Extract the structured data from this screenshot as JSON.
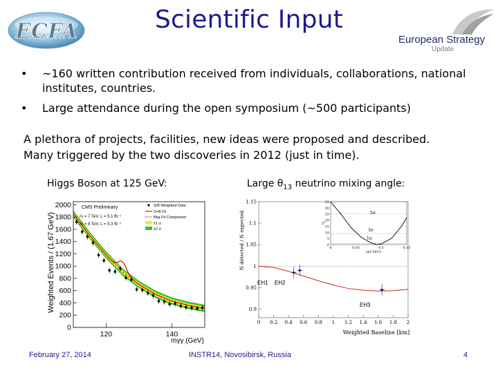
{
  "header": {
    "title": "Scientific Input",
    "logo_left_text": "ECFA",
    "logo_right_line1": "European Strategy",
    "logo_right_line2": "Update"
  },
  "bullets": [
    "~160 written contribution received  from individuals, collaborations, national institutes, countries.",
    "Large attendance during the open symposium (~500 participants)"
  ],
  "paragraph": {
    "line1": "A plethora of projects, facilities, new ideas were proposed and described.",
    "line2": "Many triggered by the two discoveries in 2012 (just in time)."
  },
  "captions": {
    "left": "Higgs Boson at 125 GeV:",
    "right_prefix": "Large θ",
    "right_sub": "13",
    "right_suffix": " neutrino mixing angle:"
  },
  "footer": {
    "date": "February 27, 2014",
    "event": "INSTR14, Novosibirsk, Russia",
    "page": "4"
  },
  "chart_data": [
    {
      "type": "scatter",
      "ylabel": "Weighted Events / (1.67 GeV)",
      "xlabel": "mγγ (GeV)",
      "x_ticks": [
        "120",
        "140"
      ],
      "y_ticks": [
        "0",
        "200",
        "400",
        "600",
        "800",
        "1000",
        "1200",
        "1400",
        "1600",
        "1800",
        "2000"
      ],
      "xlim": [
        110,
        150
      ],
      "ylim": [
        0,
        2050
      ],
      "annotations": [
        "CMS Preliminary",
        "√s = 7 TeV, L = 5.1 fb⁻¹",
        "√s = 8 TeV, L = 5.3 fb⁻¹"
      ],
      "legend": [
        "S/B Weighted Data",
        "S+B Fit",
        "Bkg Fit Component",
        "±1 σ",
        "±2 σ"
      ],
      "legend_position": "top-right",
      "colors": {
        "data": "#000000",
        "fit": "#d01010",
        "bkg": "#d01010",
        "band1": "#f2ee2a",
        "band2": "#35c235"
      },
      "x": [
        111,
        112.7,
        114.3,
        116,
        117.7,
        119.3,
        121,
        122.7,
        124.3,
        126,
        127.7,
        129.3,
        131,
        132.7,
        134.3,
        136,
        137.7,
        139.3,
        141,
        142.7,
        144.3,
        146,
        147.7,
        149.3
      ],
      "y": [
        1720,
        1560,
        1480,
        1380,
        1180,
        1090,
        930,
        910,
        960,
        810,
        780,
        620,
        610,
        560,
        520,
        430,
        420,
        380,
        390,
        350,
        330,
        320,
        310,
        320
      ],
      "bkg_fit": {
        "x": [
          110,
          115,
          120,
          125,
          130,
          135,
          140,
          145,
          150
        ],
        "y": [
          1850,
          1500,
          1180,
          900,
          700,
          540,
          430,
          360,
          310
        ]
      },
      "signal_peak": {
        "x": 125,
        "height": 170
      }
    },
    {
      "type": "line",
      "ylabel": "N detected / N expected",
      "xlabel": "Weighted Baseline [km]",
      "x_ticks": [
        "0",
        "0.2",
        "0.4",
        "0.6",
        "0.8",
        "1",
        "1.2",
        "1.4",
        "1.6",
        "1.8",
        "2"
      ],
      "y_ticks": [
        "0.9",
        "0.95",
        "1",
        "1.05",
        "1.1",
        "1.15"
      ],
      "xlim": [
        0,
        2
      ],
      "ylim": [
        0.88,
        1.15
      ],
      "labels": [
        "EH1",
        "EH2",
        "EH3"
      ],
      "points": [
        {
          "name": "EH1",
          "x": 0.47,
          "y": 0.985
        },
        {
          "name": "EH2",
          "x": 0.55,
          "y": 0.99
        },
        {
          "name": "EH3",
          "x": 1.65,
          "y": 0.945
        }
      ],
      "curve": {
        "x": [
          0,
          0.2,
          0.4,
          0.6,
          0.8,
          1.0,
          1.2,
          1.4,
          1.6,
          1.8,
          2.0
        ],
        "y": [
          1.0,
          0.997,
          0.988,
          0.977,
          0.966,
          0.956,
          0.948,
          0.944,
          0.942,
          0.943,
          0.946
        ]
      },
      "inset": {
        "ylabel": "χ²",
        "xlabel": "sin²2θ13",
        "x_ticks": [
          "0",
          "0.05",
          "0.1",
          "0.15"
        ],
        "y_ticks": [
          "0",
          "5",
          "10",
          "15",
          "20",
          "25",
          "30",
          "35"
        ],
        "sigma_labels": [
          "5σ",
          "3σ",
          "1σ"
        ],
        "xlim": [
          0,
          0.15
        ],
        "ylim": [
          0,
          35
        ],
        "x": [
          0,
          0.02,
          0.04,
          0.06,
          0.08,
          0.092,
          0.1,
          0.12,
          0.14,
          0.15
        ],
        "y": [
          35,
          25,
          14,
          6,
          1.2,
          0,
          0.6,
          5,
          15,
          22
        ]
      }
    }
  ]
}
